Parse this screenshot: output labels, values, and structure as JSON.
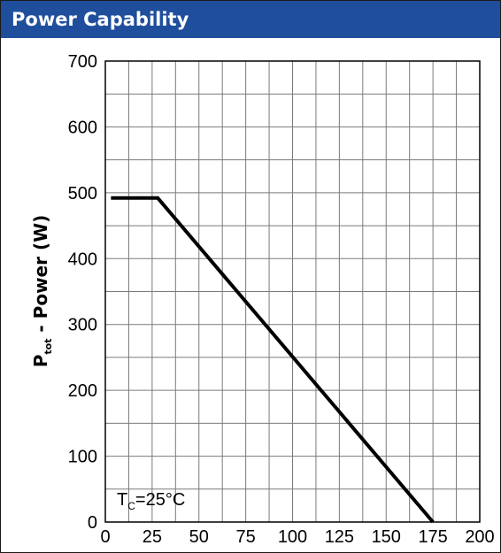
{
  "panel": {
    "title": "Power Capability"
  },
  "chart_data": {
    "type": "line",
    "title": "",
    "xlabel": "",
    "ylabel": {
      "main": "P",
      "subscript": "tot",
      "rest": " - Power (W)"
    },
    "xlim": [
      0,
      200
    ],
    "ylim": [
      0,
      700
    ],
    "x_ticks": [
      0,
      25,
      50,
      75,
      100,
      125,
      150,
      175,
      200
    ],
    "y_ticks": [
      0,
      100,
      200,
      300,
      400,
      500,
      600,
      700
    ],
    "x_minor_step": 12.5,
    "y_minor_step": 50,
    "grid": true,
    "series": [
      {
        "x": [
          3,
          28,
          175
        ],
        "y": [
          492,
          492,
          0
        ],
        "color": "#000000"
      }
    ],
    "annotation": {
      "main": "T",
      "subscript": "C",
      "rest": "=25°C"
    }
  }
}
